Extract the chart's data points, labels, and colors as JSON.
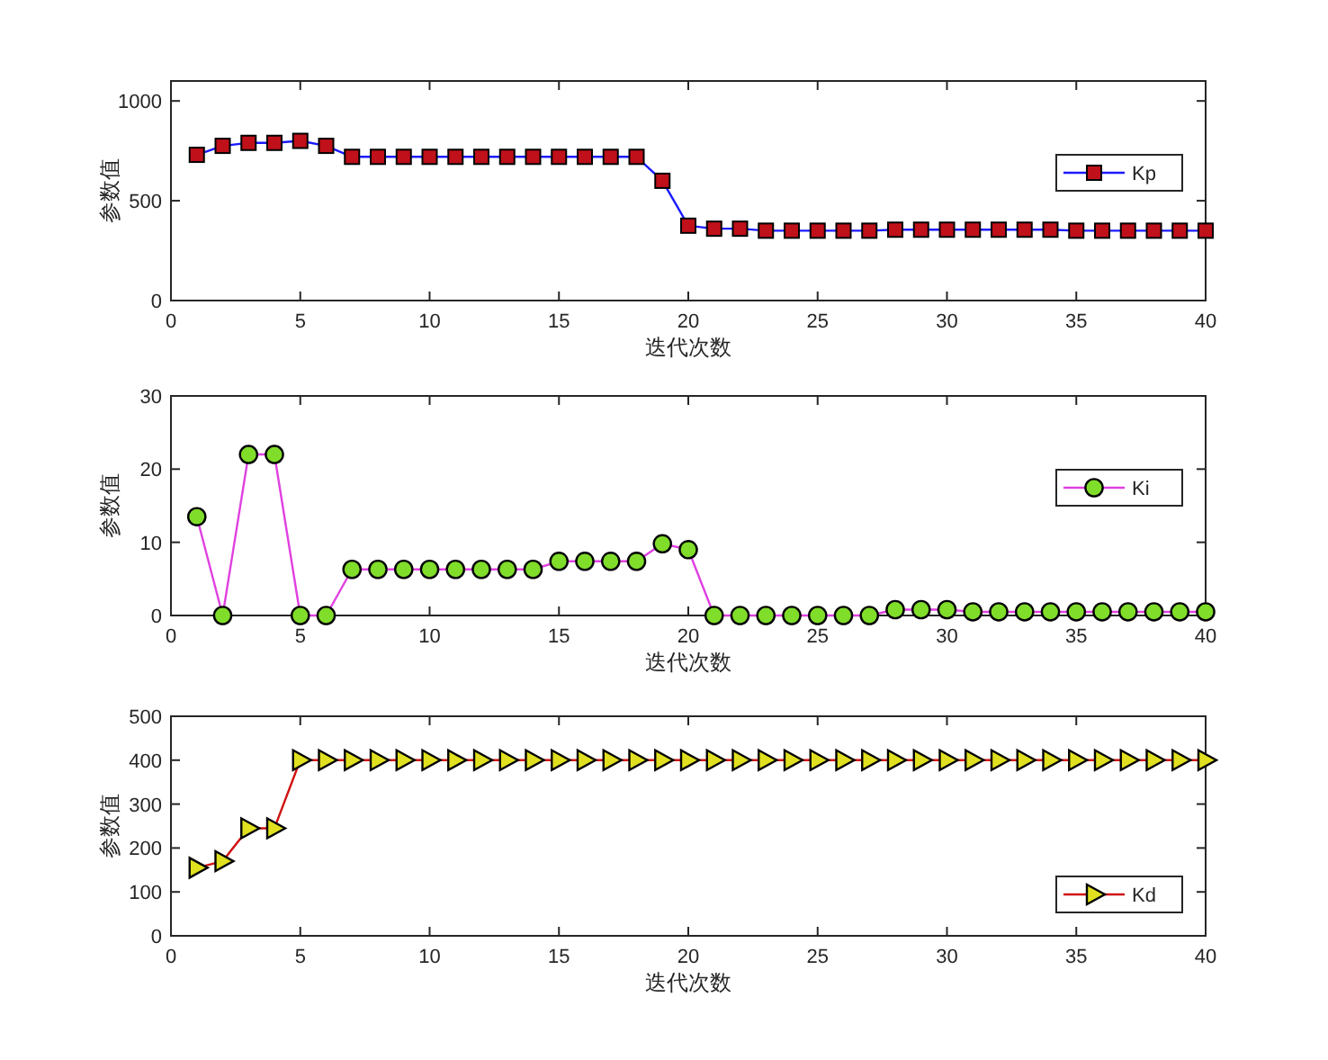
{
  "chart_data": [
    {
      "type": "line",
      "xlabel": "迭代次数",
      "ylabel": "参数值",
      "x": [
        1,
        2,
        3,
        4,
        5,
        6,
        7,
        8,
        9,
        10,
        11,
        12,
        13,
        14,
        15,
        16,
        17,
        18,
        19,
        20,
        21,
        22,
        23,
        24,
        25,
        26,
        27,
        28,
        29,
        30,
        31,
        32,
        33,
        34,
        35,
        36,
        37,
        38,
        39,
        40
      ],
      "xlim": [
        0,
        40
      ],
      "xticks": [
        0,
        5,
        10,
        15,
        20,
        25,
        30,
        35,
        40
      ],
      "ylim": [
        0,
        1100
      ],
      "yticks": [
        0,
        500,
        1000
      ],
      "grid": false,
      "legend": "right",
      "marker": "square",
      "line_style": "solid",
      "series": [
        {
          "name": "Kp",
          "color": "#1a1aff",
          "colors": [
            "#c0101a",
            "#c0101a",
            "#c0101a",
            "#c0101a",
            "#c0101a",
            "#c0101a",
            "#c0101a",
            "#c0101a",
            "#c0101a",
            "#c0101a",
            "#c0101a",
            "#c0101a",
            "#c0101a",
            "#c0101a",
            "#c0101a",
            "#c0101a",
            "#c0101a",
            "#c0101a",
            "#c0101a",
            "#c0101a",
            "#c0101a",
            "#c0101a",
            "#c0101a",
            "#c0101a",
            "#c0101a",
            "#c0101a",
            "#c0101a",
            "#c0101a",
            "#c0101a",
            "#c0101a",
            "#c0101a",
            "#c0101a",
            "#c0101a",
            "#c0101a",
            "#c0101a",
            "#c0101a",
            "#c0101a",
            "#c0101a",
            "#c0101a",
            "#c0101a"
          ],
          "values": [
            730,
            775,
            790,
            790,
            800,
            775,
            720,
            720,
            720,
            720,
            720,
            720,
            720,
            720,
            720,
            720,
            720,
            720,
            600,
            375,
            360,
            360,
            350,
            350,
            350,
            350,
            350,
            355,
            355,
            355,
            355,
            355,
            355,
            355,
            350,
            350,
            350,
            350,
            350,
            350
          ]
        }
      ]
    },
    {
      "type": "line",
      "xlabel": "迭代次数",
      "ylabel": "参数值",
      "x": [
        1,
        2,
        3,
        4,
        5,
        6,
        7,
        8,
        9,
        10,
        11,
        12,
        13,
        14,
        15,
        16,
        17,
        18,
        19,
        20,
        21,
        22,
        23,
        24,
        25,
        26,
        27,
        28,
        29,
        30,
        31,
        32,
        33,
        34,
        35,
        36,
        37,
        38,
        39,
        40
      ],
      "xlim": [
        0,
        40
      ],
      "xticks": [
        0,
        5,
        10,
        15,
        20,
        25,
        30,
        35,
        40
      ],
      "ylim": [
        0,
        30
      ],
      "yticks": [
        0,
        10,
        20,
        30
      ],
      "grid": false,
      "legend": "right",
      "marker": "circle",
      "line_style": "solid",
      "series": [
        {
          "name": "Ki",
          "color": "#e040e0",
          "colors": [
            "#80dd2a",
            "#80dd2a",
            "#80dd2a",
            "#80dd2a",
            "#80dd2a",
            "#80dd2a",
            "#80dd2a",
            "#80dd2a",
            "#80dd2a",
            "#80dd2a",
            "#80dd2a",
            "#80dd2a",
            "#80dd2a",
            "#80dd2a",
            "#80dd2a",
            "#80dd2a",
            "#80dd2a",
            "#80dd2a",
            "#80dd2a",
            "#80dd2a",
            "#80dd2a",
            "#80dd2a",
            "#80dd2a",
            "#80dd2a",
            "#80dd2a",
            "#80dd2a",
            "#80dd2a",
            "#80dd2a",
            "#80dd2a",
            "#80dd2a",
            "#80dd2a",
            "#80dd2a",
            "#80dd2a",
            "#80dd2a",
            "#80dd2a",
            "#80dd2a",
            "#80dd2a",
            "#80dd2a",
            "#80dd2a",
            "#80dd2a"
          ],
          "values": [
            13.5,
            0,
            22,
            22,
            0,
            0,
            6.3,
            6.3,
            6.3,
            6.3,
            6.3,
            6.3,
            6.3,
            6.3,
            7.4,
            7.4,
            7.4,
            7.4,
            9.8,
            9,
            0,
            0,
            0,
            0,
            0,
            0,
            0,
            0.8,
            0.8,
            0.8,
            0.5,
            0.5,
            0.5,
            0.5,
            0.5,
            0.5,
            0.5,
            0.5,
            0.5,
            0.5
          ]
        }
      ]
    },
    {
      "type": "line",
      "xlabel": "迭代次数",
      "ylabel": "参数值",
      "x": [
        1,
        2,
        3,
        4,
        5,
        6,
        7,
        8,
        9,
        10,
        11,
        12,
        13,
        14,
        15,
        16,
        17,
        18,
        19,
        20,
        21,
        22,
        23,
        24,
        25,
        26,
        27,
        28,
        29,
        30,
        31,
        32,
        33,
        34,
        35,
        36,
        37,
        38,
        39,
        40
      ],
      "xlim": [
        0,
        40
      ],
      "xticks": [
        0,
        5,
        10,
        15,
        20,
        25,
        30,
        35,
        40
      ],
      "ylim": [
        0,
        500
      ],
      "yticks": [
        0,
        100,
        200,
        300,
        400,
        500
      ],
      "grid": false,
      "legend": "bottom right",
      "marker": "triangle",
      "line_style": "solid",
      "series": [
        {
          "name": "Kd",
          "color": "#d01010",
          "colors": [
            "#e0e020",
            "#e0e020",
            "#e0e020",
            "#e0e020",
            "#e0e020",
            "#e0e020",
            "#e0e020",
            "#e0e020",
            "#e0e020",
            "#e0e020",
            "#e0e020",
            "#e0e020",
            "#e0e020",
            "#e0e020",
            "#e0e020",
            "#e0e020",
            "#e0e020",
            "#e0e020",
            "#e0e020",
            "#e0e020",
            "#e0e020",
            "#e0e020",
            "#e0e020",
            "#e0e020",
            "#e0e020",
            "#e0e020",
            "#e0e020",
            "#e0e020",
            "#e0e020",
            "#e0e020",
            "#e0e020",
            "#e0e020",
            "#e0e020",
            "#e0e020",
            "#e0e020",
            "#e0e020",
            "#e0e020",
            "#e0e020",
            "#e0e020",
            "#e0e020"
          ],
          "values": [
            155,
            170,
            245,
            245,
            400,
            400,
            400,
            400,
            400,
            400,
            400,
            400,
            400,
            400,
            400,
            400,
            400,
            400,
            400,
            400,
            400,
            400,
            400,
            400,
            400,
            400,
            400,
            400,
            400,
            400,
            400,
            400,
            400,
            400,
            400,
            400,
            400,
            400,
            400,
            400
          ]
        }
      ]
    }
  ]
}
